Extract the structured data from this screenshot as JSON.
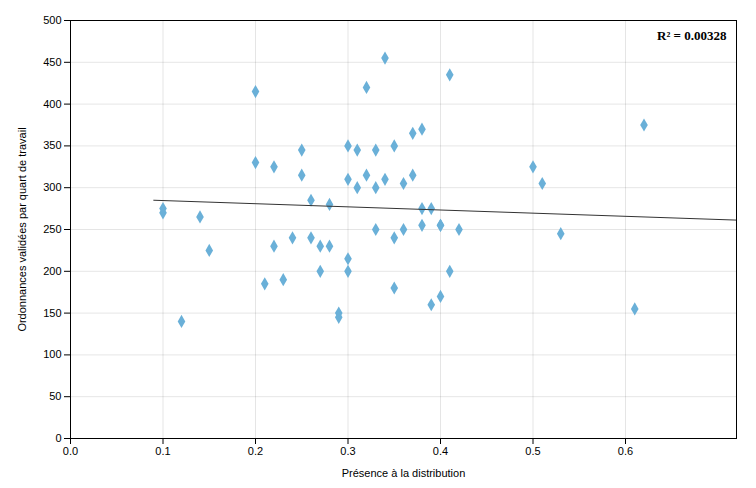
{
  "chart_data": {
    "type": "scatter",
    "x": [
      0.1,
      0.1,
      0.12,
      0.14,
      0.15,
      0.2,
      0.2,
      0.21,
      0.22,
      0.22,
      0.23,
      0.24,
      0.25,
      0.25,
      0.26,
      0.26,
      0.27,
      0.27,
      0.28,
      0.28,
      0.29,
      0.29,
      0.3,
      0.3,
      0.3,
      0.3,
      0.31,
      0.31,
      0.32,
      0.32,
      0.33,
      0.33,
      0.33,
      0.34,
      0.34,
      0.35,
      0.35,
      0.35,
      0.36,
      0.36,
      0.37,
      0.37,
      0.38,
      0.38,
      0.38,
      0.39,
      0.39,
      0.4,
      0.4,
      0.4,
      0.41,
      0.41,
      0.42,
      0.5,
      0.51,
      0.53,
      0.61,
      0.62
    ],
    "y": [
      275,
      270,
      140,
      265,
      225,
      415,
      330,
      185,
      325,
      230,
      190,
      240,
      345,
      315,
      240,
      285,
      230,
      200,
      280,
      230,
      150,
      145,
      350,
      310,
      215,
      200,
      300,
      345,
      315,
      420,
      300,
      345,
      250,
      455,
      310,
      180,
      240,
      350,
      305,
      250,
      365,
      315,
      370,
      255,
      275,
      160,
      275,
      255,
      255,
      170,
      435,
      200,
      250,
      325,
      305,
      245,
      155,
      375
    ],
    "color": "#6ab0d8",
    "marker": "diamond",
    "trendline": {
      "x": [
        0.09,
        0.72
      ],
      "y": [
        285,
        261.24590163934425
      ],
      "color": "#333333"
    },
    "annotation": "R² = 0.00328",
    "xlabel": "Présence à la distribution",
    "ylabel": "Ordonnances validées par quart de travail",
    "xlim": [
      0,
      0.72
    ],
    "ylim": [
      0,
      500
    ],
    "xticks": [
      0,
      0.1,
      0.2,
      0.3,
      0.4,
      0.5,
      0.6
    ],
    "yticks": [
      0,
      50,
      100,
      150,
      200,
      250,
      300,
      350,
      400,
      450,
      500
    ],
    "grid": true
  }
}
